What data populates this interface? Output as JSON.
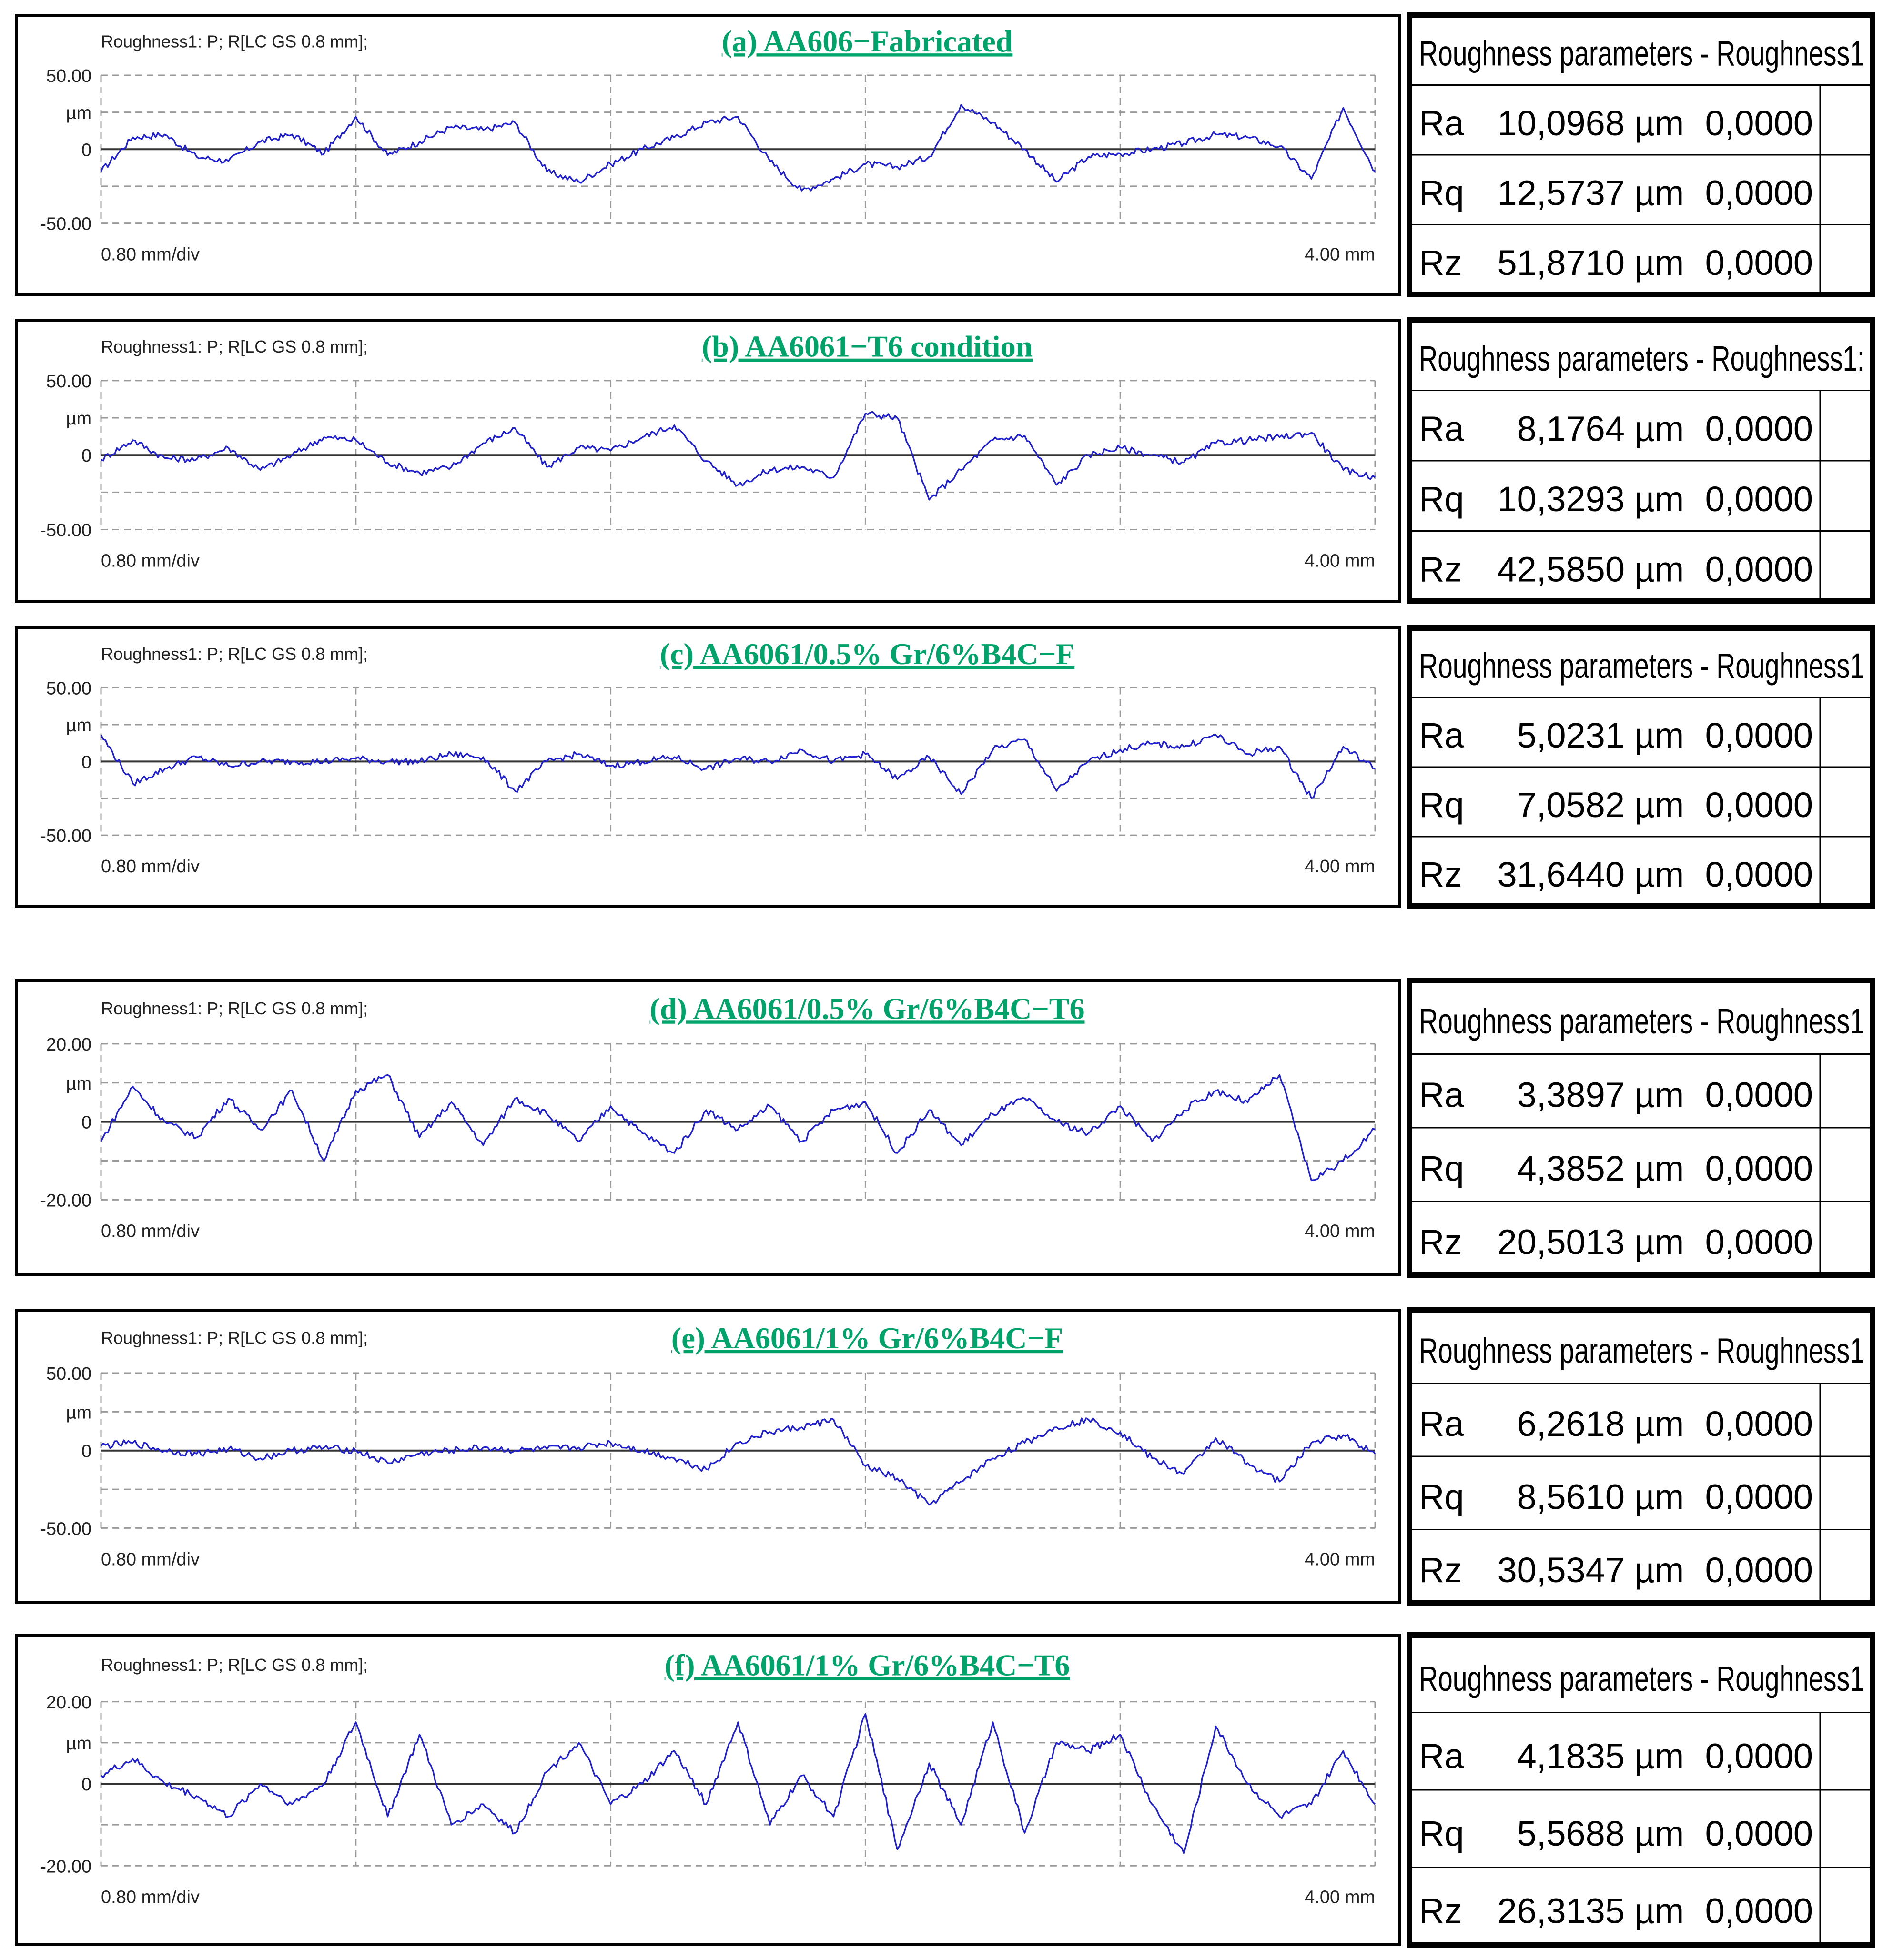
{
  "colors": {
    "title_green": "#00a36a",
    "trace_blue": "#1f1fd0",
    "grid": "#9a9a9a",
    "frame": "#000000"
  },
  "chart_data": [
    {
      "type": "line",
      "header": "Roughness1: P; R[LC GS 0.8 mm];",
      "title": "(a) AA606−Fabricated",
      "y_max_label": "50.00",
      "y_min_label": "-50.00",
      "y_unit": "µm",
      "y_zero_label": "0",
      "ylim": [
        -50,
        50
      ],
      "x_div_label": "0.80 mm/div",
      "x_end_label": "4.00 mm",
      "xlim": [
        0,
        4
      ],
      "grid": true,
      "x": [
        0,
        0.1,
        0.2,
        0.3,
        0.4,
        0.5,
        0.6,
        0.7,
        0.8,
        0.9,
        1.0,
        1.1,
        1.2,
        1.3,
        1.4,
        1.5,
        1.6,
        1.7,
        1.8,
        1.9,
        2.0,
        2.1,
        2.2,
        2.3,
        2.4,
        2.5,
        2.6,
        2.7,
        2.8,
        2.9,
        3.0,
        3.1,
        3.2,
        3.3,
        3.4,
        3.5,
        3.6,
        3.7,
        3.8,
        3.9,
        4.0
      ],
      "y": [
        -15,
        8,
        10,
        -5,
        -8,
        5,
        10,
        -3,
        22,
        -4,
        5,
        15,
        13,
        18,
        -15,
        -22,
        -10,
        0,
        8,
        18,
        22,
        -8,
        -28,
        -20,
        -10,
        -12,
        -5,
        30,
        18,
        0,
        -22,
        -5,
        -3,
        0,
        4,
        10,
        8,
        2,
        -20,
        28,
        -15
      ],
      "table": {
        "title": "Roughness parameters - Roughness1",
        "rows": [
          {
            "name": "Ra",
            "value": "10,0968",
            "unit": "µm",
            "extra": "0,0000"
          },
          {
            "name": "Rq",
            "value": "12,5737",
            "unit": "µm",
            "extra": "0,0000"
          },
          {
            "name": "Rz",
            "value": "51,8710",
            "unit": "µm",
            "extra": "0,0000"
          }
        ]
      }
    },
    {
      "type": "line",
      "header": "Roughness1: P; R[LC GS 0.8 mm];",
      "title": "(b) AA6061−T6 condition",
      "y_max_label": "50.00",
      "y_min_label": "-50.00",
      "y_unit": "µm",
      "y_zero_label": "0",
      "ylim": [
        -50,
        50
      ],
      "x_div_label": "0.80 mm/div",
      "x_end_label": "4.00 mm",
      "xlim": [
        0,
        4
      ],
      "grid": true,
      "x": [
        0,
        0.1,
        0.2,
        0.3,
        0.4,
        0.5,
        0.6,
        0.7,
        0.8,
        0.9,
        1.0,
        1.1,
        1.2,
        1.3,
        1.4,
        1.5,
        1.6,
        1.7,
        1.8,
        1.9,
        2.0,
        2.1,
        2.2,
        2.3,
        2.4,
        2.5,
        2.6,
        2.7,
        2.8,
        2.9,
        3.0,
        3.1,
        3.2,
        3.3,
        3.4,
        3.5,
        3.6,
        3.7,
        3.8,
        3.9,
        4.0
      ],
      "y": [
        -3,
        10,
        -2,
        -3,
        5,
        -10,
        0,
        12,
        10,
        -5,
        -12,
        -8,
        8,
        18,
        -8,
        5,
        3,
        12,
        20,
        -4,
        -20,
        -10,
        -8,
        -15,
        28,
        25,
        -30,
        -10,
        10,
        13,
        -20,
        0,
        5,
        0,
        -5,
        8,
        10,
        12,
        15,
        -10,
        -15
      ],
      "table": {
        "title": "Roughness parameters - Roughness1:",
        "rows": [
          {
            "name": "Ra",
            "value": "8,1764",
            "unit": "µm",
            "extra": "0,0000"
          },
          {
            "name": "Rq",
            "value": "10,3293",
            "unit": "µm",
            "extra": "0,0000"
          },
          {
            "name": "Rz",
            "value": "42,5850",
            "unit": "µm",
            "extra": "0,0000"
          }
        ]
      }
    },
    {
      "type": "line",
      "header": "Roughness1: P; R[LC GS 0.8 mm];",
      "title": "(c) AA6061/0.5% Gr/6%B4C−F",
      "y_max_label": "50.00",
      "y_min_label": "-50.00",
      "y_unit": "µm",
      "y_zero_label": "0",
      "ylim": [
        -50,
        50
      ],
      "x_div_label": "0.80 mm/div",
      "x_end_label": "4.00 mm",
      "xlim": [
        0,
        4
      ],
      "grid": true,
      "x": [
        0,
        0.1,
        0.2,
        0.3,
        0.4,
        0.5,
        0.6,
        0.7,
        0.8,
        0.9,
        1.0,
        1.1,
        1.2,
        1.3,
        1.4,
        1.5,
        1.6,
        1.7,
        1.8,
        1.9,
        2.0,
        2.1,
        2.2,
        2.3,
        2.4,
        2.5,
        2.6,
        2.7,
        2.8,
        2.9,
        3.0,
        3.1,
        3.2,
        3.3,
        3.4,
        3.5,
        3.6,
        3.7,
        3.8,
        3.9,
        4.0
      ],
      "y": [
        18,
        -15,
        -5,
        3,
        -3,
        0,
        0,
        0,
        2,
        0,
        0,
        5,
        3,
        -20,
        0,
        5,
        -3,
        0,
        3,
        -5,
        2,
        0,
        8,
        0,
        5,
        -12,
        3,
        -22,
        8,
        15,
        -20,
        0,
        8,
        12,
        10,
        18,
        5,
        10,
        -25,
        10,
        -5
      ],
      "table": {
        "title": "Roughness parameters - Roughness1",
        "rows": [
          {
            "name": "Ra",
            "value": "5,0231",
            "unit": "µm",
            "extra": "0,0000"
          },
          {
            "name": "Rq",
            "value": "7,0582",
            "unit": "µm",
            "extra": "0,0000"
          },
          {
            "name": "Rz",
            "value": "31,6440",
            "unit": "µm",
            "extra": "0,0000"
          }
        ]
      }
    },
    {
      "type": "line",
      "header": "Roughness1: P; R[LC GS 0.8 mm];",
      "title": "(d) AA6061/0.5% Gr/6%B4C−T6",
      "y_max_label": "20.00",
      "y_min_label": "-20.00",
      "y_unit": "µm",
      "y_zero_label": "0",
      "ylim": [
        -20,
        20
      ],
      "x_div_label": "0.80 mm/div",
      "x_end_label": "4.00 mm",
      "xlim": [
        0,
        4
      ],
      "grid": true,
      "x": [
        0,
        0.1,
        0.2,
        0.3,
        0.4,
        0.5,
        0.6,
        0.7,
        0.8,
        0.9,
        1.0,
        1.1,
        1.2,
        1.3,
        1.4,
        1.5,
        1.6,
        1.7,
        1.8,
        1.9,
        2.0,
        2.1,
        2.2,
        2.3,
        2.4,
        2.5,
        2.6,
        2.7,
        2.8,
        2.9,
        3.0,
        3.1,
        3.2,
        3.3,
        3.4,
        3.5,
        3.6,
        3.7,
        3.8,
        3.9,
        4.0
      ],
      "y": [
        -5,
        9,
        0,
        -4,
        6,
        -2,
        8,
        -10,
        8,
        12,
        -4,
        5,
        -6,
        6,
        2,
        -5,
        4,
        -3,
        -8,
        3,
        -2,
        4,
        -5,
        3,
        5,
        -8,
        3,
        -6,
        2,
        6,
        0,
        -3,
        4,
        -5,
        3,
        8,
        5,
        12,
        -15,
        -10,
        -2
      ],
      "table": {
        "title": "Roughness parameters - Roughness1",
        "rows": [
          {
            "name": "Ra",
            "value": "3,3897",
            "unit": "µm",
            "extra": "0,0000"
          },
          {
            "name": "Rq",
            "value": "4,3852",
            "unit": "µm",
            "extra": "0,0000"
          },
          {
            "name": "Rz",
            "value": "20,5013",
            "unit": "µm",
            "extra": "0,0000"
          }
        ]
      }
    },
    {
      "type": "line",
      "header": "Roughness1: P; R[LC GS 0.8 mm];",
      "title": "(e) AA6061/1% Gr/6%B4C−F",
      "y_max_label": "50.00",
      "y_min_label": "-50.00",
      "y_unit": "µm",
      "y_zero_label": "0",
      "ylim": [
        -50,
        50
      ],
      "x_div_label": "0.80 mm/div",
      "x_end_label": "4.00 mm",
      "xlim": [
        0,
        4
      ],
      "grid": true,
      "x": [
        0,
        0.1,
        0.2,
        0.3,
        0.4,
        0.5,
        0.6,
        0.7,
        0.8,
        0.9,
        1.0,
        1.1,
        1.2,
        1.3,
        1.4,
        1.5,
        1.6,
        1.7,
        1.8,
        1.9,
        2.0,
        2.1,
        2.2,
        2.3,
        2.4,
        2.5,
        2.6,
        2.7,
        2.8,
        2.9,
        3.0,
        3.1,
        3.2,
        3.3,
        3.4,
        3.5,
        3.6,
        3.7,
        3.8,
        3.9,
        4.0
      ],
      "y": [
        3,
        5,
        0,
        -2,
        1,
        -5,
        0,
        2,
        0,
        -8,
        -2,
        0,
        2,
        0,
        1,
        2,
        5,
        0,
        -5,
        -12,
        5,
        12,
        15,
        20,
        -10,
        -18,
        -35,
        -20,
        -5,
        5,
        15,
        20,
        12,
        -5,
        -15,
        8,
        -8,
        -20,
        5,
        10,
        -2
      ],
      "table": {
        "title": "Roughness parameters - Roughness1",
        "rows": [
          {
            "name": "Ra",
            "value": "6,2618",
            "unit": "µm",
            "extra": "0,0000"
          },
          {
            "name": "Rq",
            "value": "8,5610",
            "unit": "µm",
            "extra": "0,0000"
          },
          {
            "name": "Rz",
            "value": "30,5347",
            "unit": "µm",
            "extra": "0,0000"
          }
        ]
      }
    },
    {
      "type": "line",
      "header": "Roughness1: P; R[LC GS 0.8 mm];",
      "title": "(f) AA6061/1% Gr/6%B4C−T6",
      "y_max_label": "20.00",
      "y_min_label": "-20.00",
      "y_unit": "µm",
      "y_zero_label": "0",
      "ylim": [
        -20,
        20
      ],
      "x_div_label": "0.80 mm/div",
      "x_end_label": "4.00 mm",
      "xlim": [
        0,
        4
      ],
      "grid": true,
      "x": [
        0,
        0.1,
        0.2,
        0.3,
        0.4,
        0.5,
        0.6,
        0.7,
        0.8,
        0.9,
        1.0,
        1.1,
        1.2,
        1.3,
        1.4,
        1.5,
        1.6,
        1.7,
        1.8,
        1.9,
        2.0,
        2.1,
        2.2,
        2.3,
        2.4,
        2.5,
        2.6,
        2.7,
        2.8,
        2.9,
        3.0,
        3.1,
        3.2,
        3.3,
        3.4,
        3.5,
        3.6,
        3.7,
        3.8,
        3.9,
        4.0
      ],
      "y": [
        2,
        6,
        0,
        -3,
        -8,
        0,
        -5,
        0,
        15,
        -8,
        12,
        -10,
        -5,
        -12,
        3,
        10,
        -5,
        0,
        8,
        -5,
        15,
        -10,
        2,
        -8,
        17,
        -16,
        5,
        -10,
        15,
        -12,
        10,
        8,
        12,
        -5,
        -17,
        14,
        0,
        -8,
        -5,
        8,
        -5
      ],
      "table": {
        "title": "Roughness parameters - Roughness1",
        "rows": [
          {
            "name": "Ra",
            "value": "4,1835",
            "unit": "µm",
            "extra": "0,0000"
          },
          {
            "name": "Rq",
            "value": "5,5688",
            "unit": "µm",
            "extra": "0,0000"
          },
          {
            "name": "Rz",
            "value": "26,3135",
            "unit": "µm",
            "extra": "0,0000"
          }
        ]
      }
    }
  ]
}
